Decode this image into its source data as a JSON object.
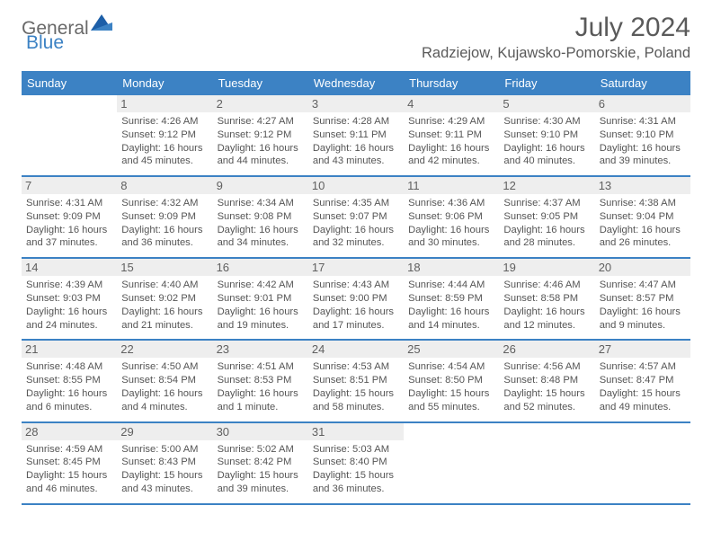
{
  "brand": {
    "part1": "General",
    "part2": "Blue"
  },
  "title": "July 2024",
  "location": "Radziejow, Kujawsko-Pomorskie, Poland",
  "day_headers": [
    "Sunday",
    "Monday",
    "Tuesday",
    "Wednesday",
    "Thursday",
    "Friday",
    "Saturday"
  ],
  "colors": {
    "brand_blue": "#3c82c4",
    "header_text": "#ffffff",
    "daynum_bg": "#eeeeee",
    "text": "#555555"
  },
  "layout": {
    "start_col": 1,
    "num_days": 31
  },
  "days": {
    "1": {
      "sunrise": "4:26 AM",
      "sunset": "9:12 PM",
      "dl_h": 16,
      "dl_m": 45
    },
    "2": {
      "sunrise": "4:27 AM",
      "sunset": "9:12 PM",
      "dl_h": 16,
      "dl_m": 44
    },
    "3": {
      "sunrise": "4:28 AM",
      "sunset": "9:11 PM",
      "dl_h": 16,
      "dl_m": 43
    },
    "4": {
      "sunrise": "4:29 AM",
      "sunset": "9:11 PM",
      "dl_h": 16,
      "dl_m": 42
    },
    "5": {
      "sunrise": "4:30 AM",
      "sunset": "9:10 PM",
      "dl_h": 16,
      "dl_m": 40
    },
    "6": {
      "sunrise": "4:31 AM",
      "sunset": "9:10 PM",
      "dl_h": 16,
      "dl_m": 39
    },
    "7": {
      "sunrise": "4:31 AM",
      "sunset": "9:09 PM",
      "dl_h": 16,
      "dl_m": 37
    },
    "8": {
      "sunrise": "4:32 AM",
      "sunset": "9:09 PM",
      "dl_h": 16,
      "dl_m": 36
    },
    "9": {
      "sunrise": "4:34 AM",
      "sunset": "9:08 PM",
      "dl_h": 16,
      "dl_m": 34
    },
    "10": {
      "sunrise": "4:35 AM",
      "sunset": "9:07 PM",
      "dl_h": 16,
      "dl_m": 32
    },
    "11": {
      "sunrise": "4:36 AM",
      "sunset": "9:06 PM",
      "dl_h": 16,
      "dl_m": 30
    },
    "12": {
      "sunrise": "4:37 AM",
      "sunset": "9:05 PM",
      "dl_h": 16,
      "dl_m": 28
    },
    "13": {
      "sunrise": "4:38 AM",
      "sunset": "9:04 PM",
      "dl_h": 16,
      "dl_m": 26
    },
    "14": {
      "sunrise": "4:39 AM",
      "sunset": "9:03 PM",
      "dl_h": 16,
      "dl_m": 24
    },
    "15": {
      "sunrise": "4:40 AM",
      "sunset": "9:02 PM",
      "dl_h": 16,
      "dl_m": 21
    },
    "16": {
      "sunrise": "4:42 AM",
      "sunset": "9:01 PM",
      "dl_h": 16,
      "dl_m": 19
    },
    "17": {
      "sunrise": "4:43 AM",
      "sunset": "9:00 PM",
      "dl_h": 16,
      "dl_m": 17
    },
    "18": {
      "sunrise": "4:44 AM",
      "sunset": "8:59 PM",
      "dl_h": 16,
      "dl_m": 14
    },
    "19": {
      "sunrise": "4:46 AM",
      "sunset": "8:58 PM",
      "dl_h": 16,
      "dl_m": 12
    },
    "20": {
      "sunrise": "4:47 AM",
      "sunset": "8:57 PM",
      "dl_h": 16,
      "dl_m": 9
    },
    "21": {
      "sunrise": "4:48 AM",
      "sunset": "8:55 PM",
      "dl_h": 16,
      "dl_m": 6
    },
    "22": {
      "sunrise": "4:50 AM",
      "sunset": "8:54 PM",
      "dl_h": 16,
      "dl_m": 4
    },
    "23": {
      "sunrise": "4:51 AM",
      "sunset": "8:53 PM",
      "dl_h": 16,
      "dl_m": 1
    },
    "24": {
      "sunrise": "4:53 AM",
      "sunset": "8:51 PM",
      "dl_h": 15,
      "dl_m": 58
    },
    "25": {
      "sunrise": "4:54 AM",
      "sunset": "8:50 PM",
      "dl_h": 15,
      "dl_m": 55
    },
    "26": {
      "sunrise": "4:56 AM",
      "sunset": "8:48 PM",
      "dl_h": 15,
      "dl_m": 52
    },
    "27": {
      "sunrise": "4:57 AM",
      "sunset": "8:47 PM",
      "dl_h": 15,
      "dl_m": 49
    },
    "28": {
      "sunrise": "4:59 AM",
      "sunset": "8:45 PM",
      "dl_h": 15,
      "dl_m": 46
    },
    "29": {
      "sunrise": "5:00 AM",
      "sunset": "8:43 PM",
      "dl_h": 15,
      "dl_m": 43
    },
    "30": {
      "sunrise": "5:02 AM",
      "sunset": "8:42 PM",
      "dl_h": 15,
      "dl_m": 39
    },
    "31": {
      "sunrise": "5:03 AM",
      "sunset": "8:40 PM",
      "dl_h": 15,
      "dl_m": 36
    }
  }
}
